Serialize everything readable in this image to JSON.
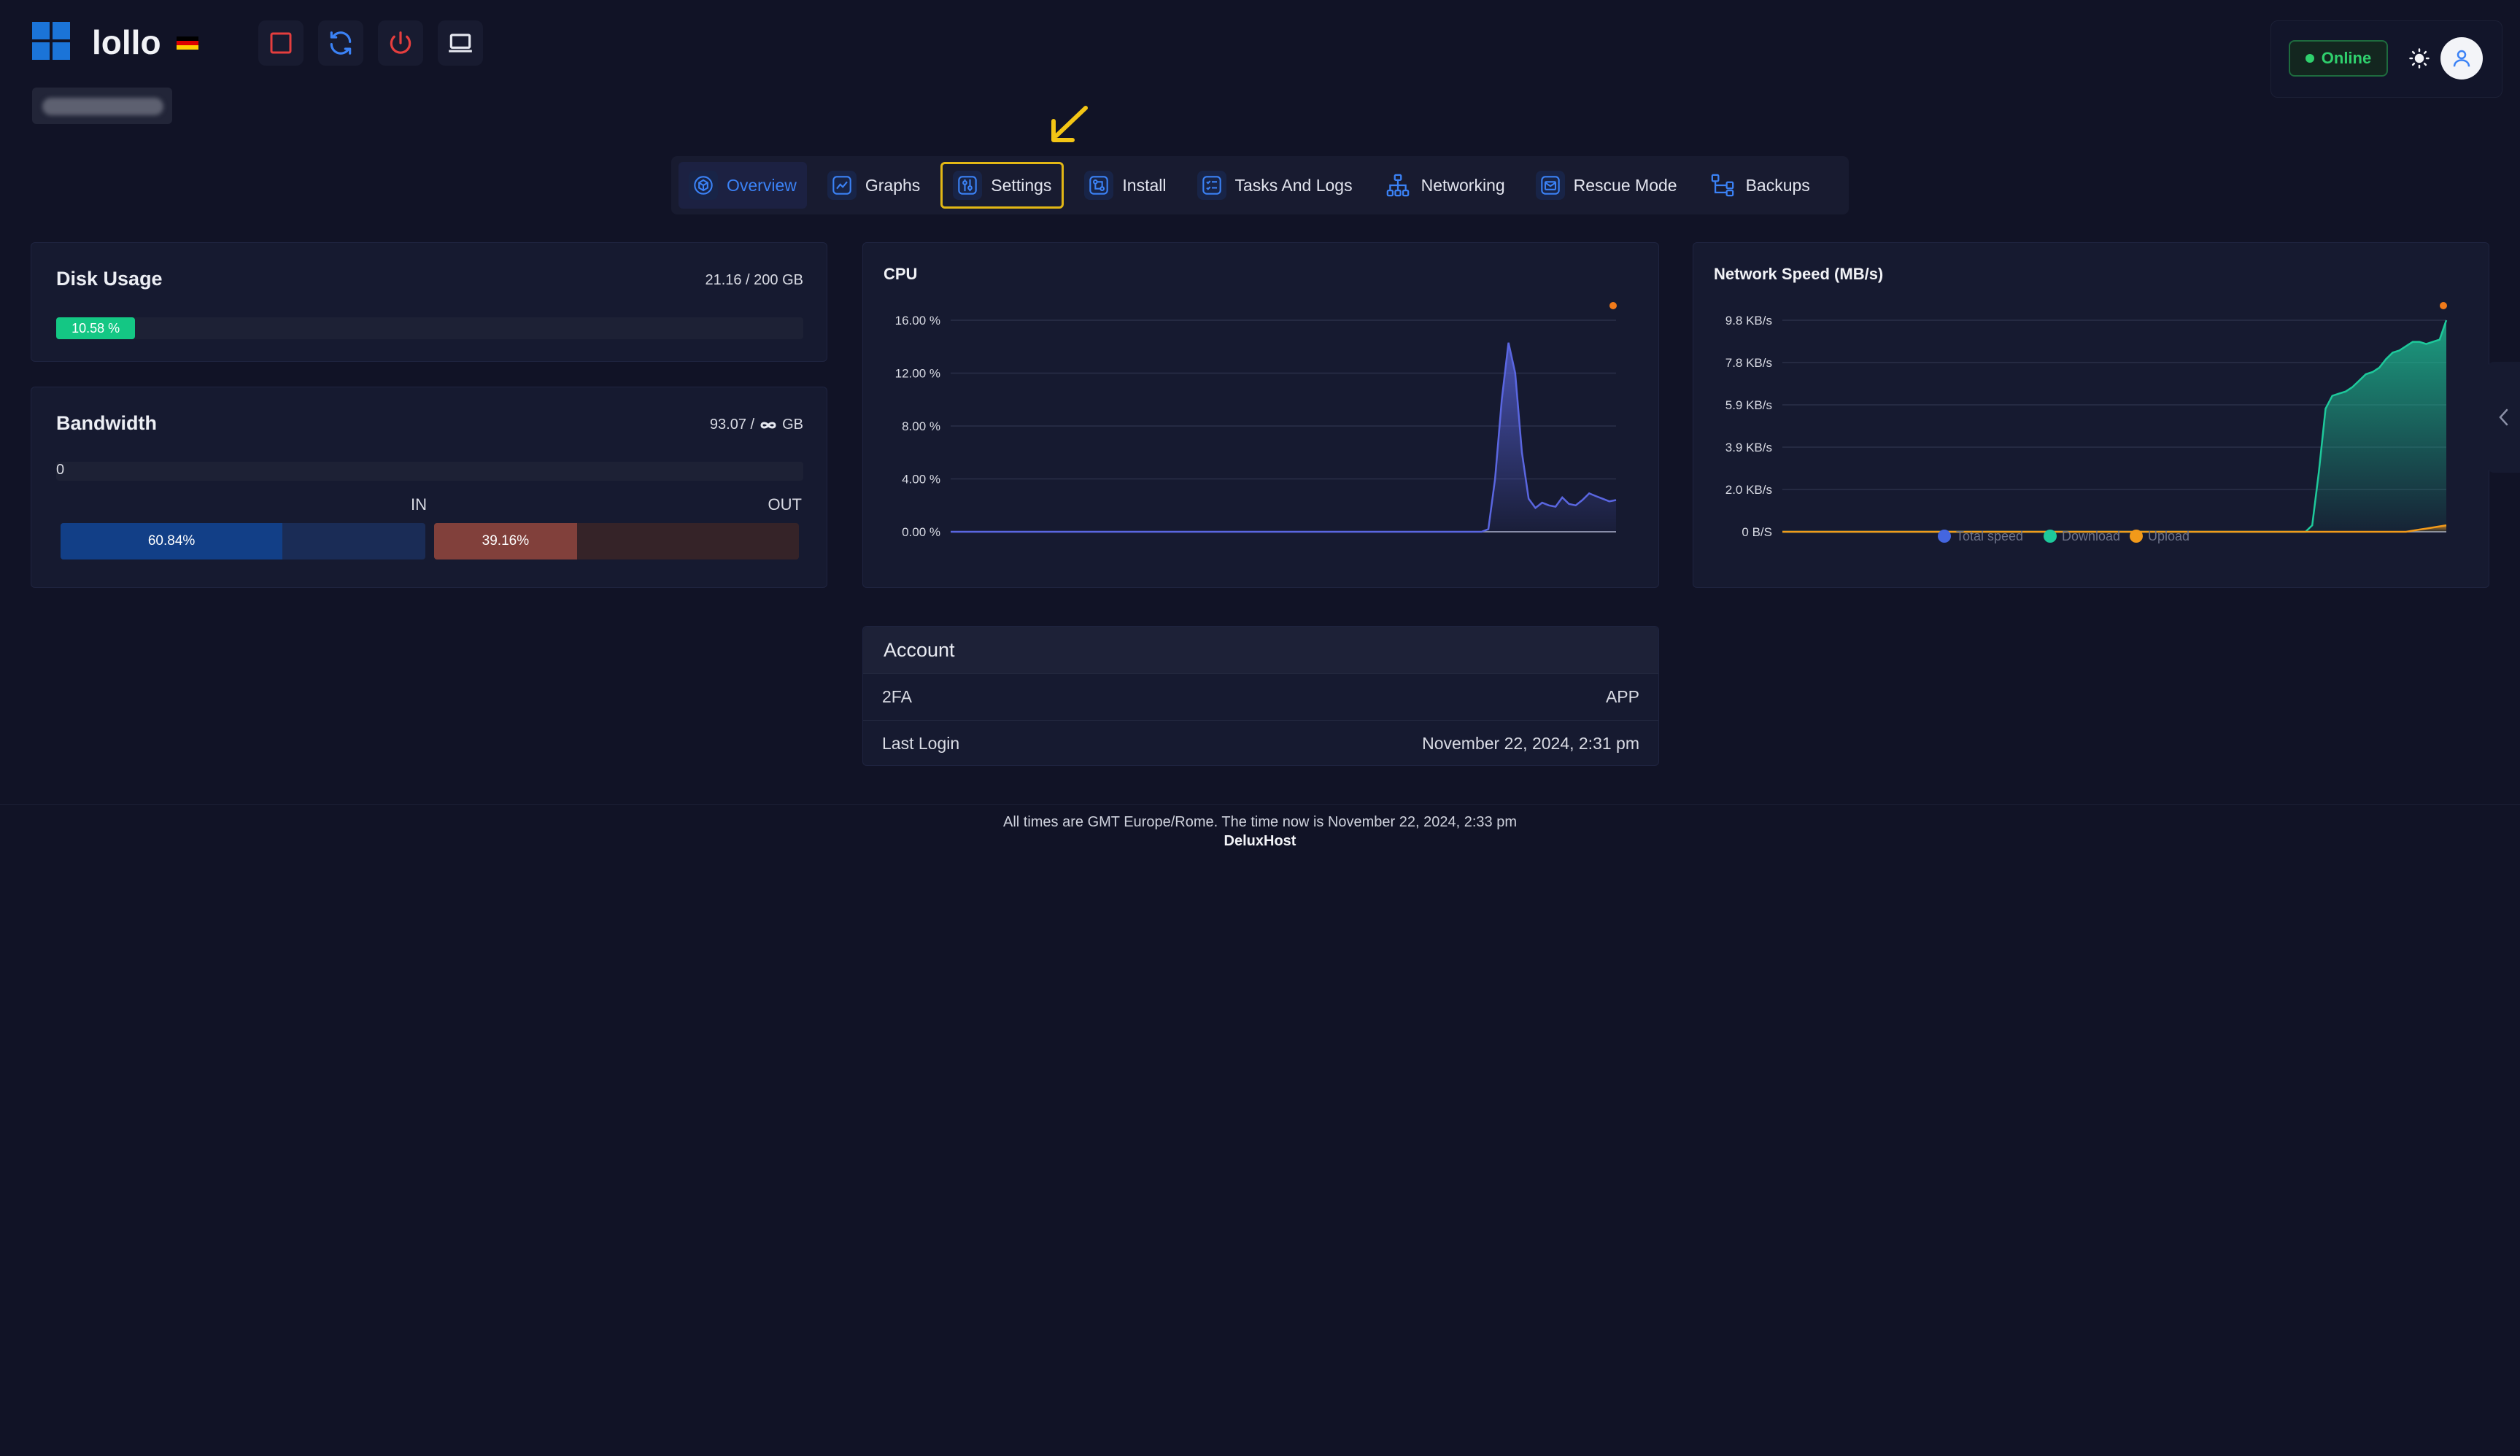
{
  "header": {
    "server_name": "lollo",
    "flag_colors": [
      "#000000",
      "#dd0000",
      "#ffce00"
    ],
    "actions": [
      {
        "name": "stop-icon",
        "color": "#e53e3e"
      },
      {
        "name": "restart-icon",
        "color": "#3b82f6"
      },
      {
        "name": "power-icon",
        "color": "#e53e3e"
      },
      {
        "name": "console-icon",
        "color": "#e6e8f0"
      }
    ],
    "status": "Online",
    "status_color": "#2fd06d"
  },
  "tabs": [
    {
      "label": "Overview",
      "icon": "cube-icon"
    },
    {
      "label": "Graphs",
      "icon": "chart-line-icon"
    },
    {
      "label": "Settings",
      "icon": "sliders-icon"
    },
    {
      "label": "Install",
      "icon": "install-icon"
    },
    {
      "label": "Tasks And Logs",
      "icon": "list-checks-icon"
    },
    {
      "label": "Networking",
      "icon": "network-icon"
    },
    {
      "label": "Rescue Mode",
      "icon": "mail-icon"
    },
    {
      "label": "Backups",
      "icon": "backup-icon"
    }
  ],
  "disk": {
    "title": "Disk Usage",
    "usage_text": "21.16 / 200 GB",
    "percent_label": "10.58 %",
    "percent": 10.58
  },
  "bandwidth": {
    "title": "Bandwidth",
    "usage_prefix": "93.07 /",
    "usage_unit": "GB",
    "zero_label": "0",
    "in_label": "IN",
    "out_label": "OUT",
    "in_percent_label": "60.84%",
    "in_percent": 60.84,
    "out_percent_label": "39.16%",
    "out_percent": 39.16
  },
  "chart_data": [
    {
      "type": "area",
      "title": "CPU",
      "yticks": [
        "16.00 %",
        "12.00 %",
        "8.00 %",
        "4.00 %",
        "0.00 %"
      ],
      "ylim": [
        0,
        16
      ],
      "color": "#5a66e0",
      "series": [
        {
          "values": [
            0,
            0,
            0,
            0,
            0,
            0,
            0,
            0,
            0,
            0,
            0,
            0,
            0,
            0,
            0,
            0,
            0,
            0,
            0,
            0,
            0,
            0,
            0,
            0,
            0,
            0,
            0,
            0,
            0,
            0,
            0,
            0,
            0,
            0,
            0,
            0,
            0,
            0,
            0,
            0,
            0,
            0,
            0,
            0,
            0,
            0,
            0,
            0,
            0,
            0,
            0,
            0,
            0,
            0,
            0,
            0,
            0,
            0,
            0,
            0,
            0,
            0,
            0,
            0,
            0,
            0,
            0,
            0,
            0,
            0,
            0,
            0,
            0,
            0,
            0,
            0,
            0,
            0,
            0,
            0,
            0.2,
            4,
            10,
            14.3,
            12,
            6,
            2.5,
            1.8,
            2.2,
            2.0,
            1.9,
            2.6,
            2.1,
            2.0,
            2.4,
            2.9,
            2.7,
            2.5,
            2.3,
            2.4
          ]
        }
      ]
    },
    {
      "type": "area",
      "title": "Network Speed (MB/s)",
      "yticks": [
        "9.8 KB/s",
        "7.8 KB/s",
        "5.9 KB/s",
        "3.9 KB/s",
        "2.0 KB/s",
        "0 B/S"
      ],
      "ylim": [
        0,
        9.8
      ],
      "legend": [
        {
          "label": "Total speed",
          "color": "#4466e0"
        },
        {
          "label": "Download",
          "color": "#1ec99b"
        },
        {
          "label": "Upload",
          "color": "#f29a1a"
        }
      ],
      "series": [
        {
          "name": "Download",
          "values": [
            0,
            0,
            0,
            0,
            0,
            0,
            0,
            0,
            0,
            0,
            0,
            0,
            0,
            0,
            0,
            0,
            0,
            0,
            0,
            0,
            0,
            0,
            0,
            0,
            0,
            0,
            0,
            0,
            0,
            0,
            0,
            0,
            0,
            0,
            0,
            0,
            0,
            0,
            0,
            0,
            0,
            0,
            0,
            0,
            0,
            0,
            0,
            0,
            0,
            0,
            0,
            0,
            0,
            0,
            0,
            0,
            0,
            0,
            0,
            0,
            0,
            0,
            0,
            0,
            0,
            0,
            0,
            0,
            0,
            0,
            0,
            0,
            0,
            0,
            0,
            0,
            0,
            0,
            0,
            0.3,
            2.8,
            5.7,
            6.3,
            6.4,
            6.5,
            6.7,
            7.0,
            7.3,
            7.4,
            7.6,
            8.0,
            8.3,
            8.4,
            8.6,
            8.8,
            8.8,
            8.7,
            8.8,
            8.9,
            9.8
          ]
        },
        {
          "name": "Upload",
          "values": [
            0,
            0,
            0,
            0,
            0,
            0,
            0,
            0,
            0,
            0,
            0,
            0,
            0,
            0,
            0,
            0,
            0,
            0,
            0,
            0,
            0,
            0,
            0,
            0,
            0,
            0,
            0,
            0,
            0,
            0,
            0,
            0,
            0,
            0,
            0,
            0,
            0,
            0,
            0,
            0,
            0,
            0,
            0,
            0,
            0,
            0,
            0,
            0,
            0,
            0,
            0,
            0,
            0,
            0,
            0,
            0,
            0,
            0,
            0,
            0,
            0,
            0,
            0,
            0,
            0,
            0,
            0,
            0,
            0,
            0,
            0,
            0,
            0,
            0,
            0,
            0,
            0,
            0,
            0,
            0,
            0,
            0,
            0,
            0,
            0,
            0,
            0,
            0,
            0,
            0,
            0,
            0,
            0,
            0,
            0.05,
            0.1,
            0.15,
            0.2,
            0.25,
            0.3
          ]
        }
      ]
    }
  ],
  "account": {
    "title": "Account",
    "rows": [
      {
        "label": "2FA",
        "value": "APP"
      },
      {
        "label": "Last Login",
        "value": "November 22, 2024, 2:31 pm"
      }
    ]
  },
  "footer": {
    "timezone_text": "All times are GMT Europe/Rome. The time now is November 22, 2024, 2:33 pm",
    "brand": "DeluxHost"
  }
}
